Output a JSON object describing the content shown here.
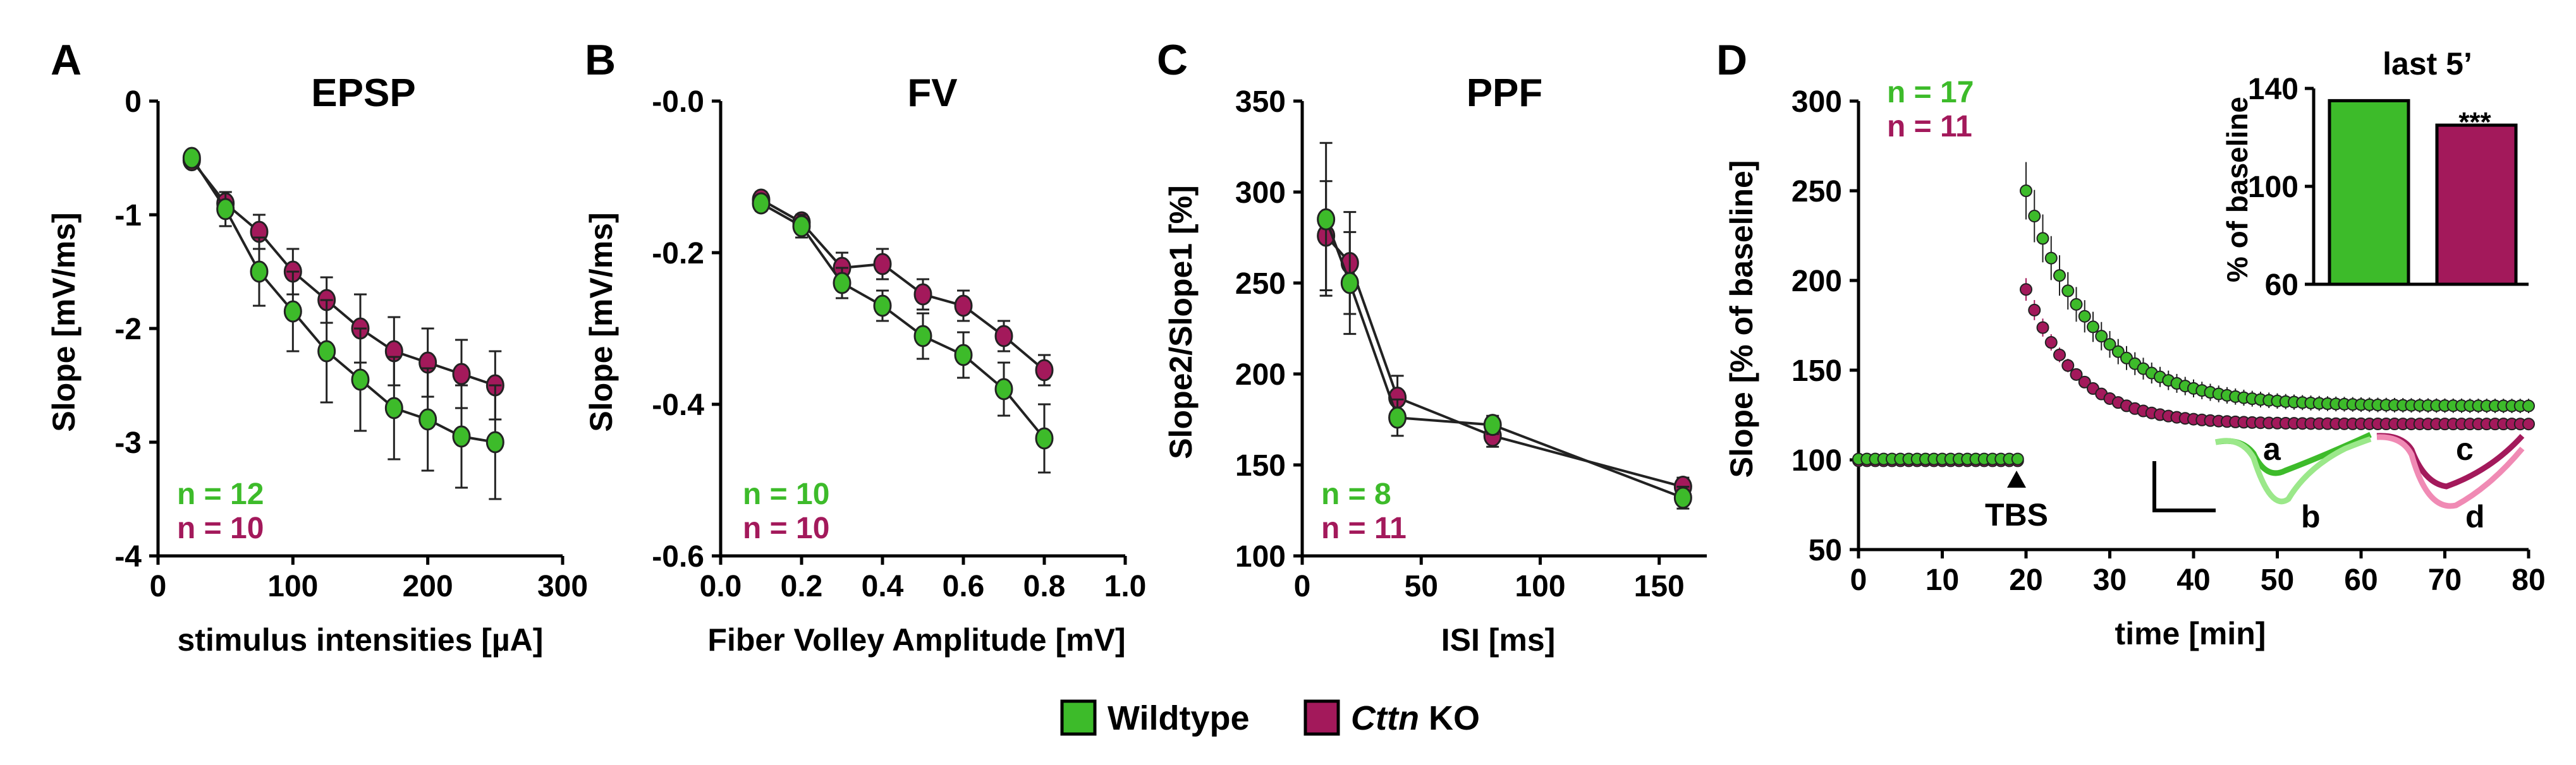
{
  "colors": {
    "wildtype": "#3dbb2a",
    "ko": "#a3195b",
    "wt_text": "#3dbb2a",
    "ko_text": "#a3195b",
    "wt_trace_light": "#9be88a",
    "ko_trace_light": "#f08ab4"
  },
  "legend": {
    "wildtype": "Wildtype",
    "ko_italic": "Cttn",
    "ko_rest": " KO"
  },
  "chart_data": [
    {
      "panel": "A",
      "type": "line",
      "title": "EPSP",
      "xlabel": "stimulus intensities [µA]",
      "ylabel": "Slope [mV/ms]",
      "xlim": [
        0,
        300
      ],
      "ylim": [
        -4,
        0
      ],
      "xticks": [
        "0",
        "100",
        "200",
        "300"
      ],
      "yticks": [
        "0",
        "-1",
        "-2",
        "-3",
        "-4"
      ],
      "n_wt": "n = 12",
      "n_ko": "n = 10",
      "series": [
        {
          "name": "Wildtype",
          "x": [
            25,
            50,
            75,
            100,
            125,
            150,
            175,
            200,
            225,
            250
          ],
          "values": [
            -0.5,
            -0.95,
            -1.5,
            -1.85,
            -2.2,
            -2.45,
            -2.7,
            -2.8,
            -2.95,
            -3.0
          ],
          "err": [
            0.05,
            0.15,
            0.3,
            0.35,
            0.45,
            0.45,
            0.45,
            0.45,
            0.45,
            0.5
          ]
        },
        {
          "name": "Cttn KO",
          "x": [
            25,
            50,
            75,
            100,
            125,
            150,
            175,
            200,
            225,
            250
          ],
          "values": [
            -0.52,
            -0.9,
            -1.15,
            -1.5,
            -1.75,
            -2.0,
            -2.2,
            -2.3,
            -2.4,
            -2.5
          ],
          "err": [
            0.05,
            0.1,
            0.15,
            0.2,
            0.2,
            0.3,
            0.3,
            0.3,
            0.3,
            0.3
          ]
        }
      ]
    },
    {
      "panel": "B",
      "type": "line",
      "title": "FV",
      "xlabel": "Fiber Volley Amplitude [mV]",
      "ylabel": "Slope [mV/ms]",
      "xlim": [
        0,
        1
      ],
      "ylim": [
        -0.6,
        0
      ],
      "xticks": [
        "0.0",
        "0.2",
        "0.4",
        "0.6",
        "0.8",
        "1.0"
      ],
      "yticks": [
        "-0.0",
        "-0.2",
        "-0.4",
        "-0.6"
      ],
      "n_wt": "n = 10",
      "n_ko": "n = 10",
      "series": [
        {
          "name": "Wildtype",
          "x": [
            0.1,
            0.2,
            0.3,
            0.4,
            0.5,
            0.6,
            0.7,
            0.8
          ],
          "values": [
            -0.135,
            -0.165,
            -0.24,
            -0.27,
            -0.31,
            -0.335,
            -0.38,
            -0.445
          ],
          "err": [
            0.01,
            0.015,
            0.02,
            0.02,
            0.03,
            0.03,
            0.035,
            0.045
          ]
        },
        {
          "name": "Cttn KO",
          "x": [
            0.1,
            0.2,
            0.3,
            0.4,
            0.5,
            0.6,
            0.7,
            0.8
          ],
          "values": [
            -0.13,
            -0.16,
            -0.22,
            -0.215,
            -0.255,
            -0.27,
            -0.31,
            -0.355
          ],
          "err": [
            0.01,
            0.01,
            0.02,
            0.02,
            0.02,
            0.02,
            0.02,
            0.02
          ]
        }
      ]
    },
    {
      "panel": "C",
      "type": "line",
      "title": "PPF",
      "xlabel": "ISI [ms]",
      "ylabel": "Slope2/Slope1 [%]",
      "xlim": [
        0,
        170
      ],
      "ylim": [
        100,
        350
      ],
      "xticks": [
        "0",
        "50",
        "100",
        "150"
      ],
      "yticks": [
        "100",
        "150",
        "200",
        "250",
        "300",
        "350"
      ],
      "n_wt": "n = 8",
      "n_ko": "n = 11",
      "series": [
        {
          "name": "Wildtype",
          "x": [
            10,
            20,
            40,
            80,
            160
          ],
          "values": [
            285,
            250,
            176,
            172,
            132
          ],
          "err": [
            42,
            28,
            10,
            5,
            6
          ]
        },
        {
          "name": "Cttn KO",
          "x": [
            10,
            20,
            40,
            80,
            160
          ],
          "values": [
            276,
            261,
            187,
            166,
            138
          ],
          "err": [
            30,
            28,
            12,
            6,
            5
          ]
        }
      ]
    },
    {
      "panel": "D",
      "type": "scatter",
      "xlabel": "time [min]",
      "ylabel": "Slope  [% of baseline]",
      "xlim": [
        0,
        80
      ],
      "ylim": [
        50,
        300
      ],
      "xticks": [
        "0",
        "10",
        "20",
        "30",
        "40",
        "50",
        "60",
        "70",
        "80"
      ],
      "yticks": [
        "50",
        "100",
        "150",
        "200",
        "250",
        "300"
      ],
      "n_wt": "n = 17",
      "n_ko": "n = 11",
      "annotation": "TBS",
      "trace_labels": [
        "a",
        "b",
        "c",
        "d"
      ],
      "series": [
        {
          "name": "Wildtype",
          "baseline_x": [
            0,
            20
          ],
          "baseline_y": 100,
          "peak_x": 20,
          "peak_y": 250,
          "post_end_x": 80,
          "post_end_y": 134,
          "tau_min": 8,
          "plateau": 130
        },
        {
          "name": "Cttn KO",
          "baseline_x": [
            0,
            20
          ],
          "baseline_y": 100,
          "peak_x": 20,
          "peak_y": 195,
          "post_end_x": 80,
          "post_end_y": 122,
          "tau_min": 6,
          "plateau": 120
        }
      ],
      "inset": {
        "type": "bar",
        "title": "last 5’",
        "ylabel": "% of baseline",
        "ylim": [
          60,
          140
        ],
        "yticks": [
          "60",
          "100",
          "140"
        ],
        "categories": [
          "Wildtype",
          "Cttn KO"
        ],
        "values": [
          135,
          125
        ],
        "significance": "***"
      }
    }
  ]
}
